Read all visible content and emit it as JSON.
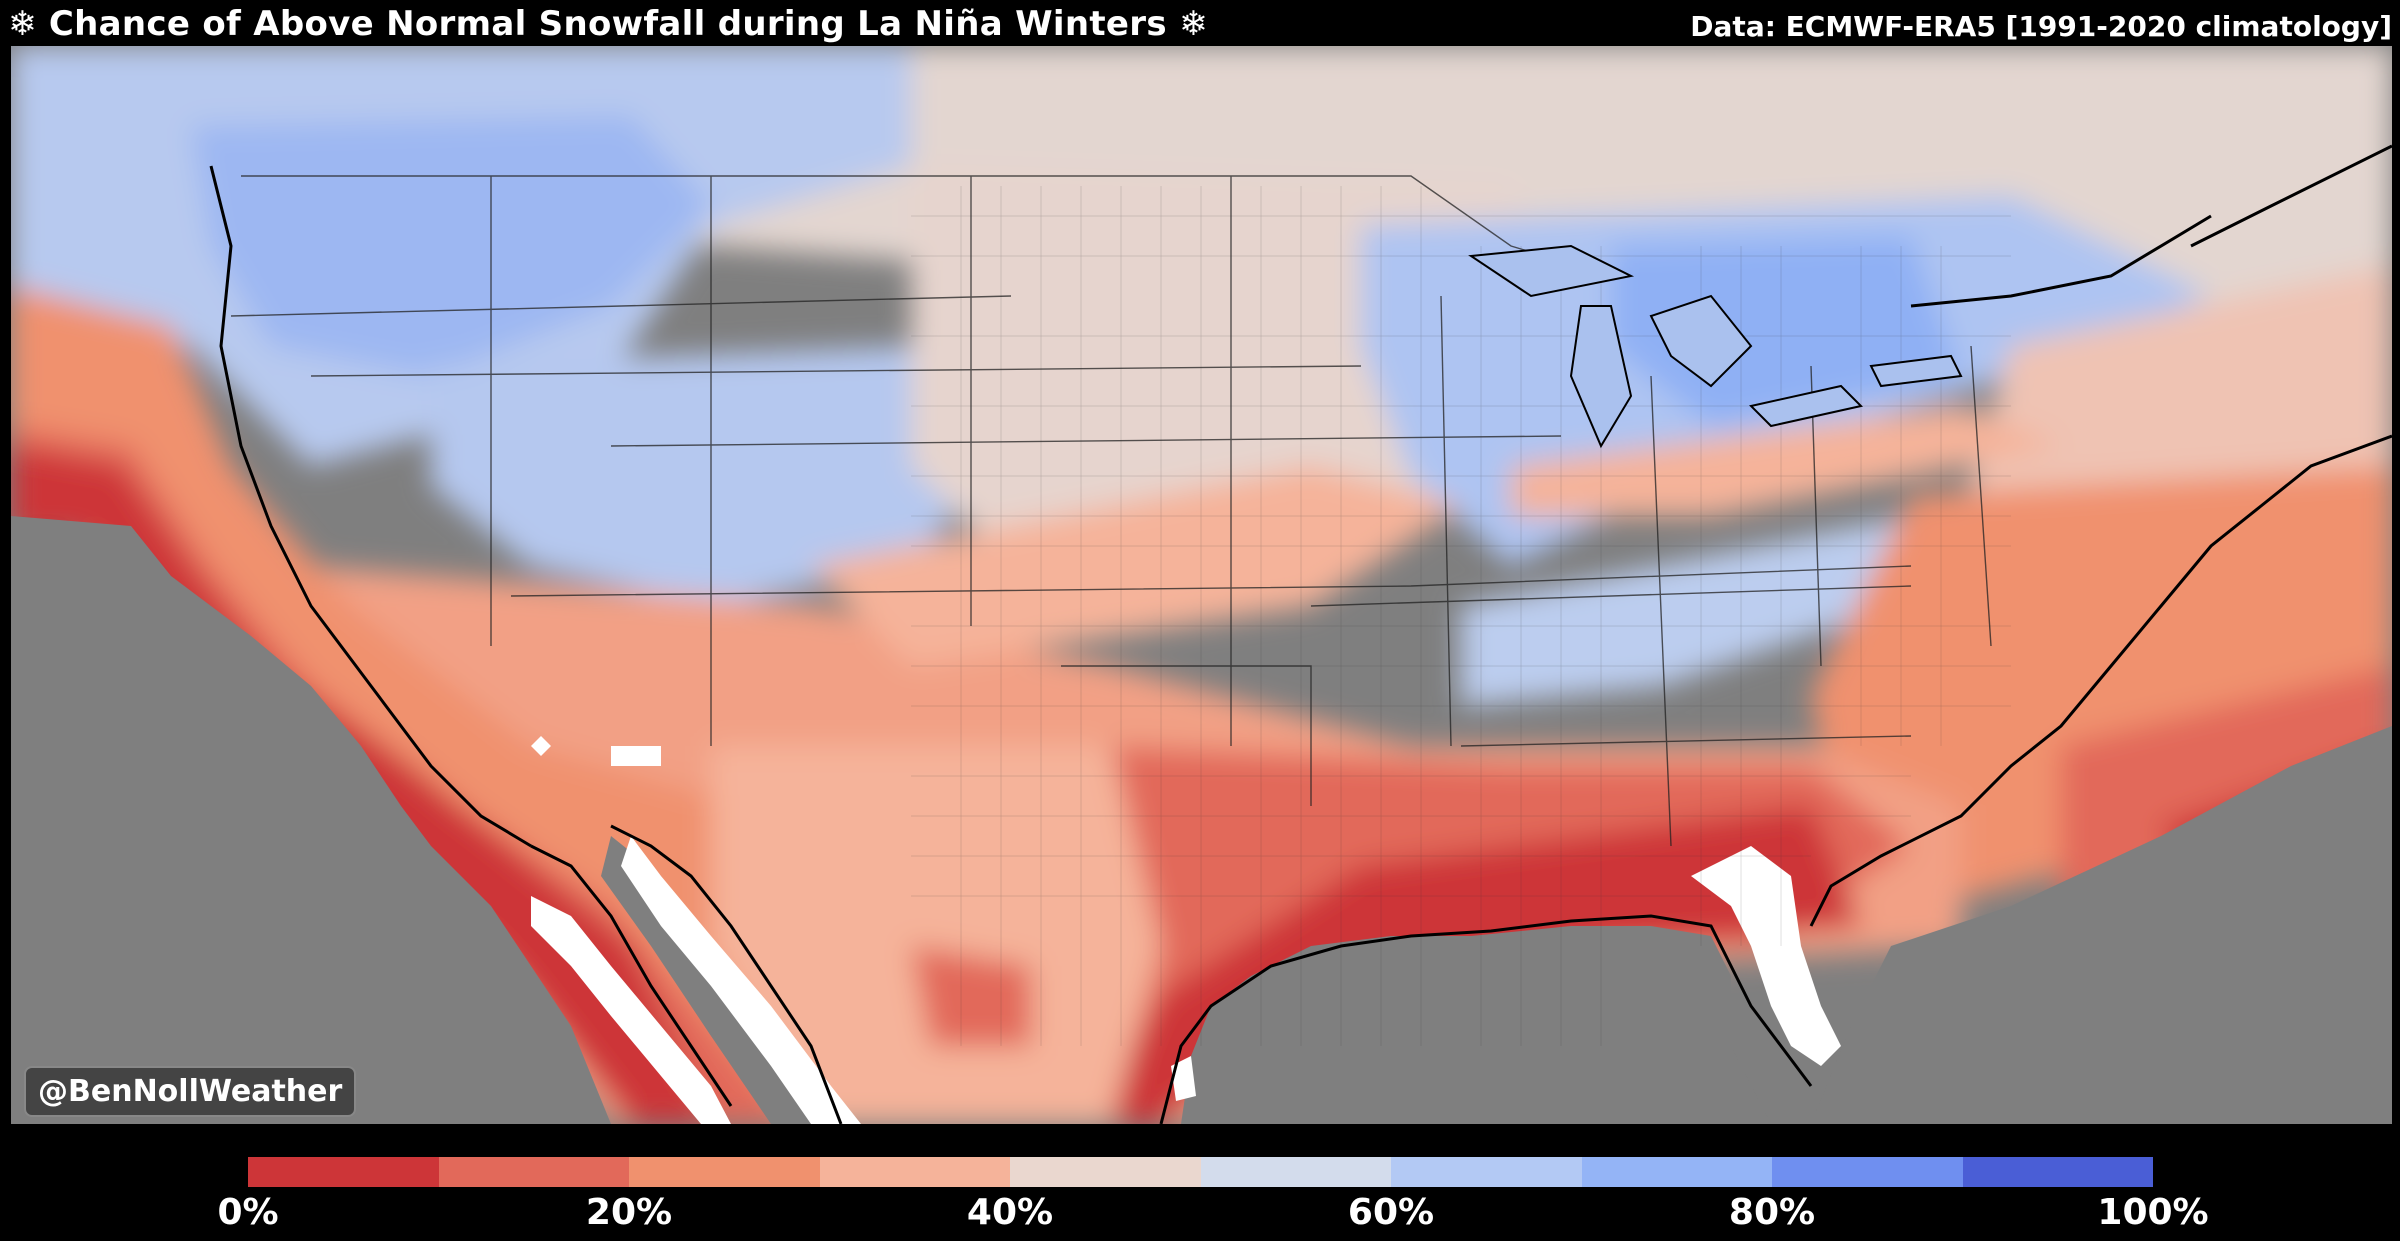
{
  "header": {
    "title": "❄ Chance of Above Normal Snowfall during La Niña Winters ❄",
    "source": "Data: ECMWF-ERA5 [1991-2020 climatology]"
  },
  "credit": "@BenNollWeather",
  "colorbar": {
    "colors": [
      "#cd3538",
      "#e2695a",
      "#f0916e",
      "#f5b39a",
      "#ead7cf",
      "#d3dcec",
      "#b3c9f4",
      "#94b4f6",
      "#6f8ff0",
      "#4a5ed6"
    ],
    "ticks": [
      "0%",
      "20%",
      "40%",
      "60%",
      "80%",
      "100%"
    ],
    "tick_values": [
      0,
      20,
      40,
      60,
      80,
      100
    ]
  },
  "palette": {
    "ocean": "#7f7f7f",
    "missing": "#ffffff",
    "border": "#000000"
  }
}
